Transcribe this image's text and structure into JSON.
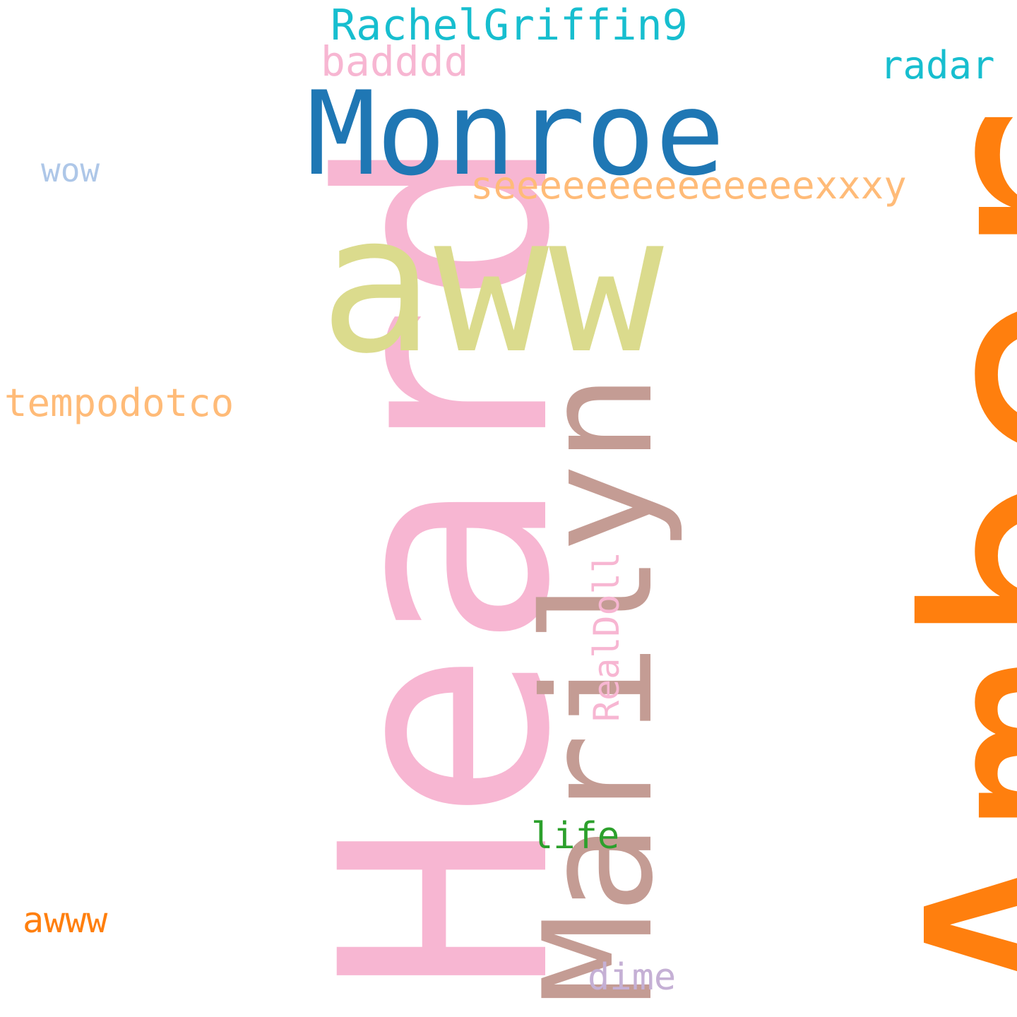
{
  "words": {
    "amber": {
      "text": "Amber",
      "color": "#ff7f0e"
    },
    "heard": {
      "text": "Heard",
      "color": "#f7b6d2"
    },
    "marilyn": {
      "text": "Marilyn",
      "color": "#c49c94"
    },
    "aww": {
      "text": "aww",
      "color": "#dbdb8d"
    },
    "monroe": {
      "text": "Monroe",
      "color": "#1f77b4"
    },
    "rachel": {
      "text": "RachelGriffin9",
      "color": "#17becf"
    },
    "badddd": {
      "text": "badddd",
      "color": "#f7b6d2"
    },
    "radar": {
      "text": "radar",
      "color": "#17becf"
    },
    "wow": {
      "text": "wow",
      "color": "#aec7e8"
    },
    "sexy": {
      "text": "seeeeeeeeeeeeeexxxy",
      "color": "#ffbb78"
    },
    "tempo": {
      "text": "tempodotco",
      "color": "#ffbb78"
    },
    "realdoll": {
      "text": "RealDoll",
      "color": "#f7b6d2"
    },
    "life": {
      "text": "life",
      "color": "#2ca02c"
    },
    "awww": {
      "text": "awww",
      "color": "#ff7f0e"
    },
    "dime": {
      "text": "dime",
      "color": "#c5b0d5"
    }
  }
}
